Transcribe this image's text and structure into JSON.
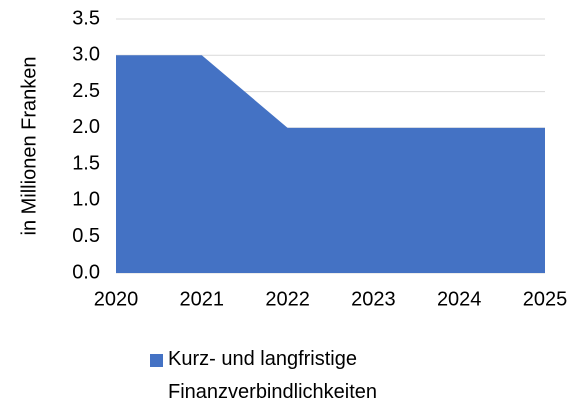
{
  "chart_data": {
    "type": "area",
    "y_label": "in Millionen Franken",
    "x": [
      2020,
      2021,
      2022,
      2023,
      2024,
      2025
    ],
    "series": [
      {
        "name": "Kurz- und langfristige Finanzverbindlichkeiten",
        "color": "#4472c4",
        "values": [
          3,
          3,
          2,
          2,
          2,
          2
        ]
      }
    ],
    "xlim": [
      2020,
      2025
    ],
    "xticks": [
      2020,
      2021,
      2022,
      2023,
      2024,
      2025
    ],
    "ylim": [
      0,
      3.5
    ],
    "yticks": [
      {
        "value": 0,
        "label": "0.0"
      },
      {
        "value": 0.5,
        "label": "0.5"
      },
      {
        "value": 1,
        "label": "1.0"
      },
      {
        "value": 1.5,
        "label": "1.5"
      },
      {
        "value": 2,
        "label": "2.0"
      },
      {
        "value": 2.5,
        "label": "2.5"
      },
      {
        "value": 3,
        "label": "3.0"
      },
      {
        "value": 3.5,
        "label": "3.5"
      }
    ],
    "grid": true,
    "legend": "bottom"
  }
}
